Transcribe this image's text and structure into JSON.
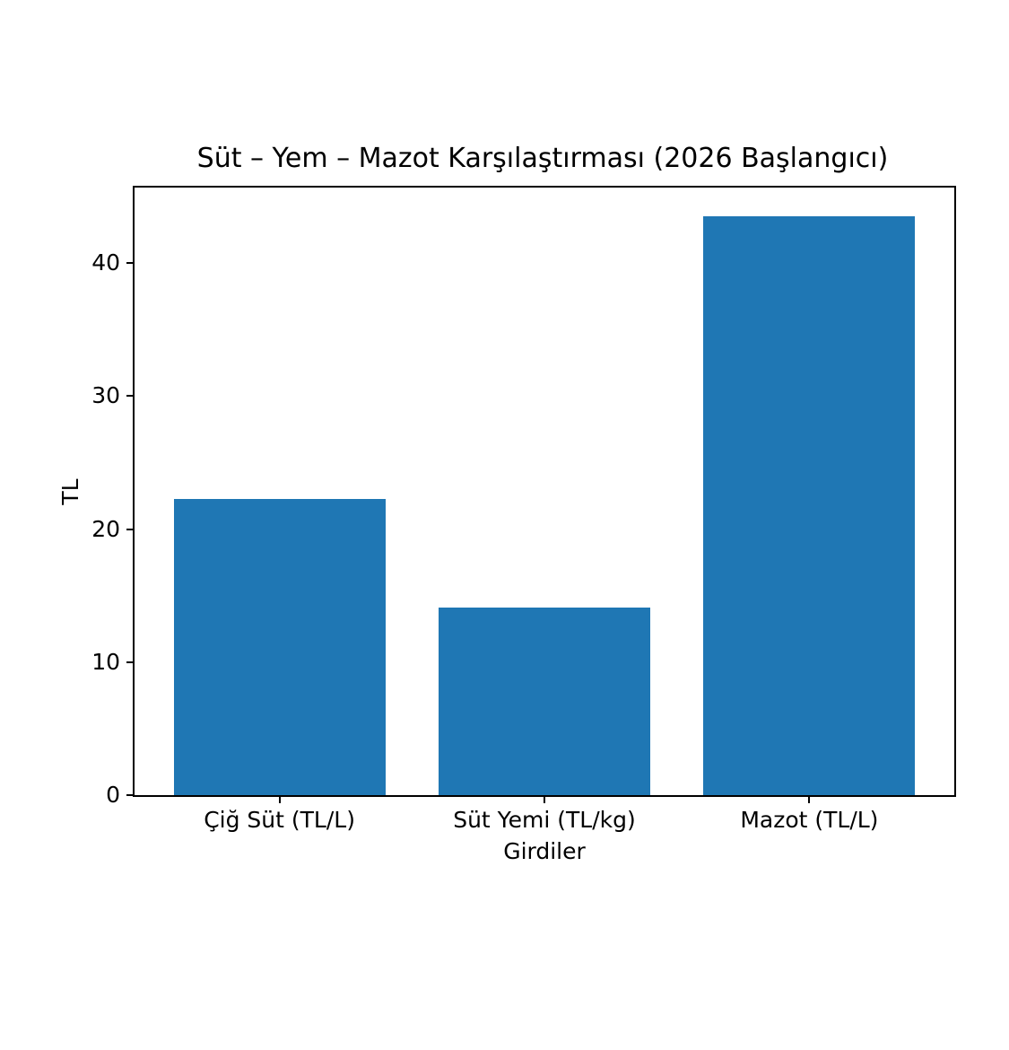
{
  "figure": {
    "background": "#ffffff"
  },
  "chart_data": {
    "type": "bar",
    "title": "Süt – Yem – Mazot Karşılaştırması (2026 Başlangıcı)",
    "xlabel": "Girdiler",
    "ylabel": "TL",
    "categories": [
      "Çiğ Süt (TL/L)",
      "Süt Yemi (TL/kg)",
      "Mazot (TL/L)"
    ],
    "values": [
      22.3,
      14.1,
      43.5
    ],
    "ylim": [
      0,
      45.68
    ],
    "yticks": [
      0,
      10,
      20,
      30,
      40
    ],
    "bar_color": "#1f77b4",
    "axis_color": "#000000",
    "text_color": "#000000",
    "grid": false,
    "legend": "none"
  }
}
